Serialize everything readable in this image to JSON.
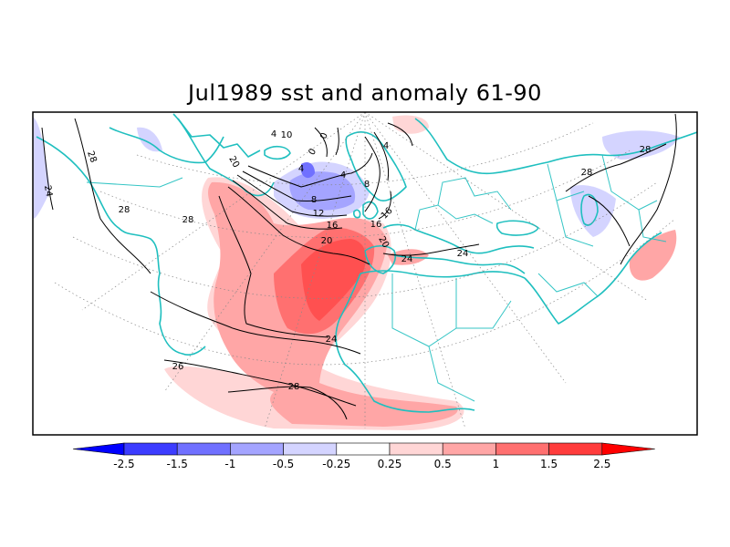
{
  "title": "Jul1989 sst and anomaly 61-90",
  "colors": {
    "land": "#1fbfbf",
    "contour": "#000000",
    "graticule": "#888888",
    "frame": "#000000"
  },
  "contour_labels": [
    {
      "id": "c28-1",
      "text": "28"
    },
    {
      "id": "c24-1",
      "text": "24"
    },
    {
      "id": "c28-2",
      "text": "28"
    },
    {
      "id": "c28-3",
      "text": "28"
    },
    {
      "id": "c20-1",
      "text": "20"
    },
    {
      "id": "c12-1",
      "text": "12"
    },
    {
      "id": "c16-1",
      "text": "16"
    },
    {
      "id": "c20-2",
      "text": "20"
    },
    {
      "id": "c8-1",
      "text": "8"
    },
    {
      "id": "c4-1",
      "text": "4"
    },
    {
      "id": "c4-2",
      "text": "4"
    },
    {
      "id": "c8-2",
      "text": "8"
    },
    {
      "id": "c16-2",
      "text": "16"
    },
    {
      "id": "c16-3",
      "text": "16"
    },
    {
      "id": "c20-3",
      "text": "20"
    },
    {
      "id": "c24-2",
      "text": "24"
    },
    {
      "id": "c24-3",
      "text": "24"
    },
    {
      "id": "c24-4",
      "text": "24"
    },
    {
      "id": "c28-4",
      "text": "28"
    },
    {
      "id": "c26-1",
      "text": "26"
    },
    {
      "id": "c28-5",
      "text": "28"
    },
    {
      "id": "c28-6",
      "text": "28"
    },
    {
      "id": "c0-1",
      "text": "0"
    },
    {
      "id": "c0-2",
      "text": "0"
    },
    {
      "id": "c4-3",
      "text": "4"
    },
    {
      "id": "c4-4",
      "text": "4"
    },
    {
      "id": "c10-1",
      "text": "10"
    }
  ],
  "colorbar": {
    "tick_labels": [
      "-2.5",
      "-1.5",
      "-1",
      "-0.5",
      "-0.25",
      "0.25",
      "0.5",
      "1",
      "1.5",
      "2.5"
    ],
    "colors": [
      "#0000ff",
      "#3c3cff",
      "#7070ff",
      "#a4a4ff",
      "#d4d4ff",
      "#ffffff",
      "#ffd6d6",
      "#ffa6a6",
      "#ff7070",
      "#ff3c3c",
      "#ff0000"
    ]
  }
}
